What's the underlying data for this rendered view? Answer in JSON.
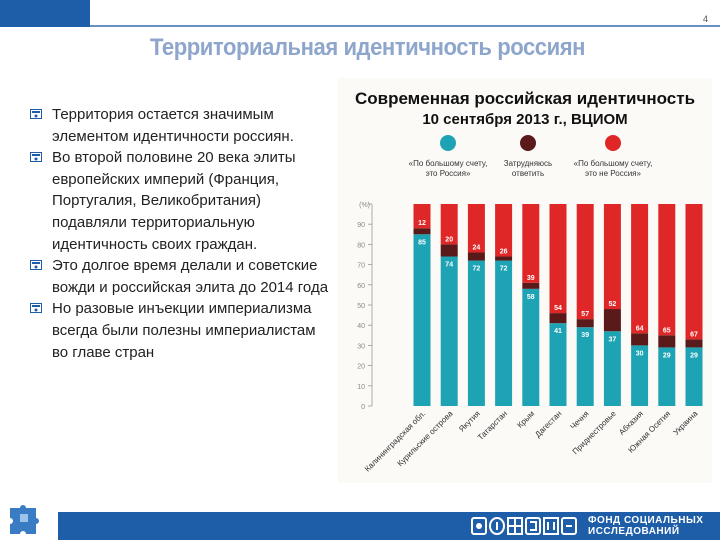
{
  "page_number": "4",
  "slide_title": "Территориальная идентичность россиян",
  "bullets": [
    "Территория остается значимым элементом идентичности россиян.",
    "Во второй половине 20 века элиты европейских империй (Франция, Португалия, Великобритания) подавляли территориальную идентичность своих граждан.",
    "Это долгое время делали и советские вожди и российская элита до 2014 года",
    "Но разовые инъекции империализма всегда были полезны империалистам во главе стран"
  ],
  "footer": {
    "org_line1": "ФОНД СОЦИАЛЬНЫХ",
    "org_line2": "ИССЛЕДОВАНИЙ"
  },
  "colors": {
    "teal": "#1ea3b5",
    "dark": "#5a1a1a",
    "red": "#e02727",
    "accent_blue": "#1e5ea8"
  },
  "chart_data": {
    "type": "bar",
    "stacked": true,
    "title": "Современная российская идентичность",
    "subtitle": "10 сентября 2013 г., ВЦИОМ",
    "ylim": [
      0,
      100
    ],
    "yticks": [
      0,
      10,
      20,
      30,
      40,
      50,
      60,
      70,
      80,
      90,
      100
    ],
    "y_unit_label": "(%)",
    "grid": false,
    "legend": [
      {
        "label": "«По большому счету, это Россия»",
        "color": "#1ea3b5"
      },
      {
        "label": "Затрудняюсь ответить",
        "color": "#5a1a1a"
      },
      {
        "label": "«По большому счету, это не Россия»",
        "color": "#e02727"
      }
    ],
    "categories": [
      "Калининградская обл.",
      "Курильские острова",
      "Якутия",
      "Татарстан",
      "Крым",
      "Дагестан",
      "Чечня",
      "Приднестровье",
      "Абхазия",
      "Южная Осетия",
      "Украина"
    ],
    "series": [
      {
        "name": "«По большому счету, это Россия»",
        "values": [
          85,
          74,
          72,
          72,
          58,
          41,
          39,
          37,
          30,
          29,
          29
        ],
        "labels": [
          "85",
          "74",
          "72",
          "72",
          "58",
          "41",
          "39",
          "37",
          "30",
          "29",
          "29"
        ]
      },
      {
        "name": "Затрудняюсь ответить",
        "values": [
          3,
          6,
          4,
          2,
          3,
          5,
          4,
          11,
          6,
          6,
          4
        ],
        "labels": [
          "",
          "",
          "",
          "",
          "",
          "",
          "",
          "",
          "",
          "",
          ""
        ]
      },
      {
        "name": "«По большому счету, это не Россия»",
        "values": [
          12,
          20,
          24,
          26,
          39,
          54,
          57,
          52,
          64,
          65,
          67
        ],
        "labels": [
          "12",
          "20",
          "24",
          "26",
          "39",
          "54",
          "57",
          "52",
          "64",
          "65",
          "67"
        ]
      }
    ]
  }
}
